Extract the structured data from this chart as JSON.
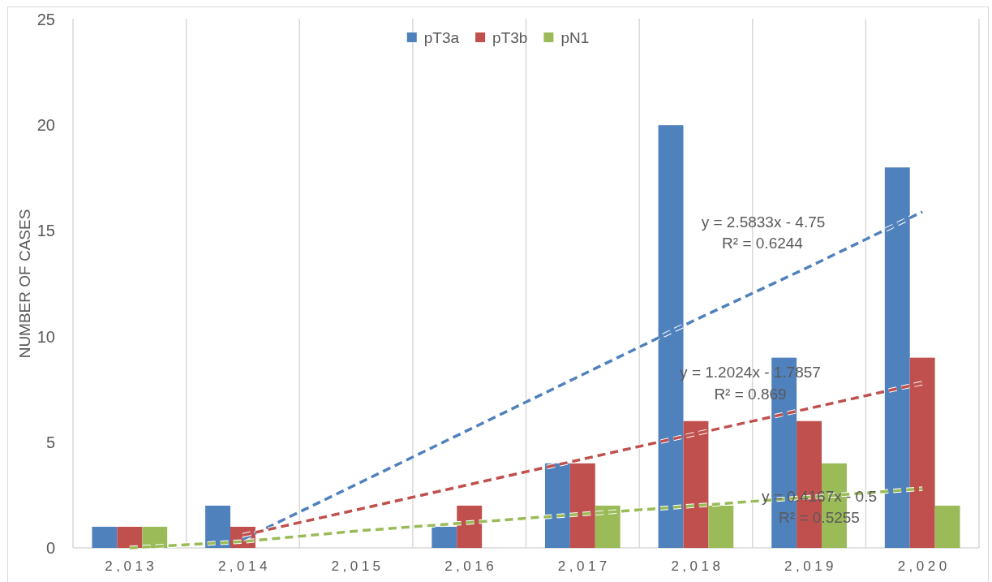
{
  "chart_data": {
    "type": "bar",
    "categories": [
      "2,013",
      "2,014",
      "2,015",
      "2,016",
      "2,017",
      "2,018",
      "2,019",
      "2,020"
    ],
    "ylabel": "NUMBER OF CASES",
    "ylim": [
      0,
      25
    ],
    "yticks": [
      0,
      5,
      10,
      15,
      20,
      25
    ],
    "grid": "x",
    "legend": "top",
    "series": [
      {
        "name": "pT3a",
        "color": "#4f81bd",
        "values": [
          1,
          2,
          0,
          1,
          4,
          20,
          9,
          18
        ]
      },
      {
        "name": "pT3b",
        "color": "#c0504d",
        "values": [
          1,
          1,
          0,
          2,
          4,
          6,
          6,
          9
        ]
      },
      {
        "name": "pN1",
        "color": "#9bbb59",
        "values": [
          1,
          0,
          0,
          0,
          2,
          2,
          4,
          2
        ]
      },
      {
        "type": "line",
        "color": "#4f81bd",
        "line_style": "dashed",
        "values": [
          null,
          0.4,
          3.0,
          5.6,
          8.2,
          10.8,
          13.3,
          15.9
        ]
      },
      {
        "type": "line",
        "color": "#c0504d",
        "line_style": "dashed",
        "values": [
          null,
          0.6,
          1.8,
          3.0,
          4.2,
          5.4,
          6.6,
          7.8
        ]
      },
      {
        "type": "line",
        "color": "#9bbb59",
        "line_style": "dashed",
        "values": [
          0,
          0.3,
          0.8,
          1.2,
          1.6,
          2.0,
          2.4,
          2.8
        ]
      }
    ],
    "annotations": [
      "y = 2.5833x - 4.75",
      "R² = 0.6244",
      "y = 1.2024x - 1.7857",
      "R² = 0.869",
      "y = 0.4167x - 0.5",
      "R² = 0.5255"
    ]
  }
}
